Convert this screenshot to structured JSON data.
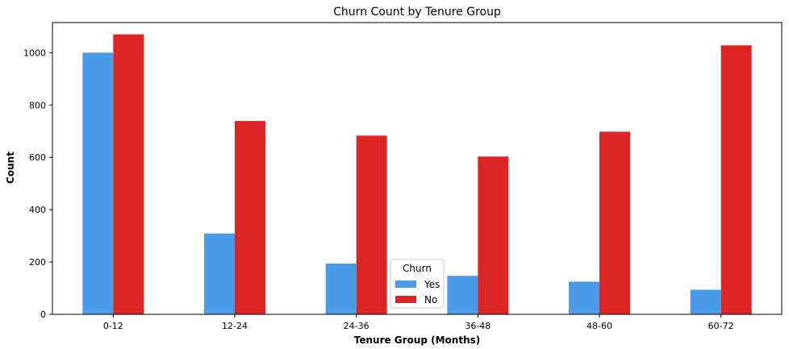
{
  "chart_data": {
    "type": "bar",
    "title": "Churn Count by Tenure Group",
    "xlabel": "Tenure Group (Months)",
    "ylabel": "Count",
    "categories": [
      "0-12",
      "12-24",
      "24-36",
      "36-48",
      "48-60",
      "60-72"
    ],
    "series": [
      {
        "name": "Yes",
        "color": "#4c9be8",
        "values": [
          1000,
          309,
          194,
          147,
          125,
          94
        ]
      },
      {
        "name": "No",
        "color": "#dc2626",
        "values": [
          1070,
          739,
          683,
          603,
          698,
          1028
        ]
      }
    ],
    "ylim": [
      0,
      1115
    ],
    "yticks": [
      0,
      200,
      400,
      600,
      800,
      1000
    ],
    "grid": false,
    "legend": {
      "title": "Churn",
      "placement": "bottom-center"
    }
  }
}
